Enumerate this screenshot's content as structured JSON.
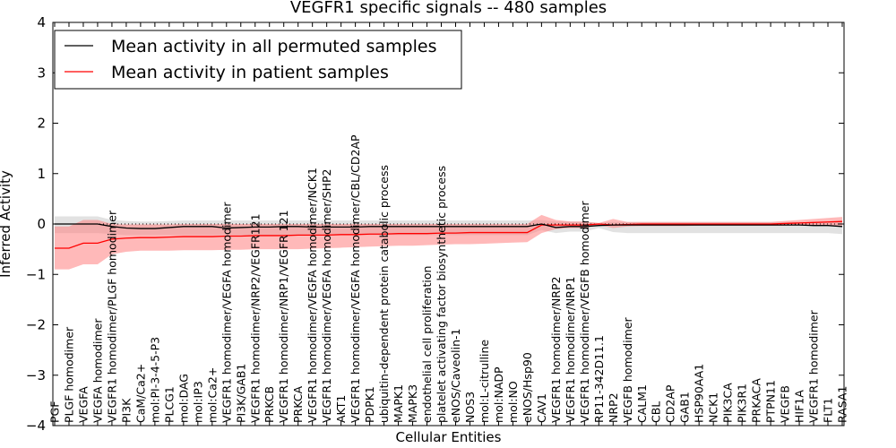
{
  "chart_data": {
    "type": "line",
    "title": "VEGFR1 specific signals -- 480 samples",
    "xlabel": "Cellular Entities",
    "ylabel": "Inferred Activity",
    "ylim": [
      -4,
      4
    ],
    "yticks": [
      -4,
      -3,
      -2,
      -1,
      0,
      1,
      2,
      3,
      4
    ],
    "grid": false,
    "legend_position": "top-left",
    "categories": [
      "PGF",
      "PLGF homodimer",
      "VEGFA",
      "VEGFA homodimer",
      "VEGFR1 homodimer/PLGF homodimer",
      "PI3K",
      "CaM/Ca2+",
      "mol:PI-3-4-5-P3",
      "PLCG1",
      "mol:DAG",
      "mol:IP3",
      "mol:Ca2+",
      "VEGFR1 homodimer/VEGFA homodimer",
      "PI3K/GAB1",
      "VEGFR1 homodimer/NRP2/VEGFR121",
      "PRKCB",
      "VEGFR1 homodimer/NRP1/VEGFR 121",
      "PRKCA",
      "VEGFR1 homodimer/VEGFA homodimer/NCK1",
      "VEGFR1 homodimer/VEGFA homodimer/SHP2",
      "AKT1",
      "VEGFR1 homodimer/VEGFA homodimer/CBL/CD2AP",
      "PDPK1",
      "ubiquitin-dependent protein catabolic process",
      "MAPK1",
      "MAPK3",
      "endothelial cell proliferation",
      "platelet activating factor biosynthetic process",
      "eNOS/Caveolin-1",
      "NOS3",
      "mol:L-citrulline",
      "mol:NADP",
      "mol:NO",
      "eNOS/Hsp90",
      "CAV1",
      "VEGFR1 homodimer/NRP2",
      "VEGFR1 homodimer/NRP1",
      "VEGFR1 homodimer/VEGFB homodimer",
      "RP11-342D11.1",
      "NRP2",
      "VEGFB homodimer",
      "CALM1",
      "CBL",
      "CD2AP",
      "GAB1",
      "HSP90AA1",
      "NCK1",
      "PIK3CA",
      "PIK3R1",
      "PRKACA",
      "PTPN11",
      "VEGFB",
      "HIF1A",
      "VEGFR1 homodimer",
      "FLT1",
      "RASA1"
    ],
    "series": [
      {
        "name": "Mean activity in all permuted samples",
        "color": "#000000",
        "band_color": "#bfbfbf",
        "values": [
          0,
          0,
          0,
          0,
          -0.05,
          -0.08,
          -0.09,
          -0.09,
          -0.07,
          -0.05,
          -0.05,
          -0.05,
          -0.08,
          -0.07,
          -0.06,
          -0.06,
          -0.05,
          -0.05,
          -0.06,
          -0.06,
          -0.06,
          -0.06,
          -0.05,
          -0.05,
          -0.05,
          -0.05,
          -0.05,
          -0.05,
          -0.05,
          -0.05,
          -0.05,
          -0.05,
          -0.05,
          -0.05,
          0,
          -0.07,
          -0.05,
          -0.05,
          -0.03,
          -0.02,
          -0.02,
          -0.02,
          -0.02,
          -0.02,
          -0.02,
          -0.02,
          -0.02,
          -0.02,
          -0.02,
          -0.02,
          -0.02,
          -0.02,
          -0.02,
          -0.03,
          -0.03,
          -0.05
        ],
        "lower": [
          -0.18,
          -0.18,
          -0.18,
          -0.18,
          -0.2,
          -0.22,
          -0.22,
          -0.22,
          -0.22,
          -0.22,
          -0.22,
          -0.22,
          -0.22,
          -0.22,
          -0.22,
          -0.22,
          -0.22,
          -0.22,
          -0.22,
          -0.22,
          -0.22,
          -0.22,
          -0.22,
          -0.22,
          -0.22,
          -0.22,
          -0.22,
          -0.22,
          -0.22,
          -0.22,
          -0.22,
          -0.22,
          -0.22,
          -0.22,
          -0.12,
          -0.18,
          -0.15,
          -0.15,
          -0.08,
          -0.16,
          -0.18,
          -0.18,
          -0.18,
          -0.18,
          -0.18,
          -0.18,
          -0.18,
          -0.18,
          -0.18,
          -0.18,
          -0.18,
          -0.18,
          -0.18,
          -0.18,
          -0.18,
          -0.2
        ],
        "upper": [
          0.15,
          0.15,
          0.15,
          0.15,
          0.08,
          0.06,
          0.05,
          0.05,
          0.06,
          0.07,
          0.07,
          0.07,
          0.07,
          0.07,
          0.07,
          0.07,
          0.07,
          0.07,
          0.07,
          0.07,
          0.07,
          0.07,
          0.07,
          0.07,
          0.07,
          0.07,
          0.07,
          0.07,
          0.07,
          0.07,
          0.07,
          0.07,
          0.07,
          0.07,
          0.08,
          0.05,
          0.05,
          0.05,
          0.02,
          0.04,
          0.04,
          0.04,
          0.04,
          0.04,
          0.04,
          0.04,
          0.04,
          0.04,
          0.04,
          0.04,
          0.04,
          0.04,
          0.04,
          0.04,
          0.04,
          0.05
        ]
      },
      {
        "name": "Mean activity in patient samples",
        "color": "#ff0000",
        "band_color": "#ff8080",
        "values": [
          -0.48,
          -0.48,
          -0.38,
          -0.38,
          -0.3,
          -0.28,
          -0.27,
          -0.27,
          -0.26,
          -0.25,
          -0.25,
          -0.25,
          -0.24,
          -0.24,
          -0.23,
          -0.23,
          -0.23,
          -0.22,
          -0.22,
          -0.22,
          -0.21,
          -0.21,
          -0.2,
          -0.2,
          -0.19,
          -0.19,
          -0.19,
          -0.18,
          -0.18,
          -0.17,
          -0.17,
          -0.17,
          -0.17,
          -0.17,
          -0.02,
          -0.02,
          -0.02,
          -0.02,
          0,
          -0.02,
          -0.01,
          0,
          0,
          0,
          0,
          0,
          0,
          0,
          0,
          0,
          0,
          0.01,
          0.02,
          0.03,
          0.04,
          0.05
        ],
        "lower": [
          -0.9,
          -0.9,
          -0.8,
          -0.8,
          -0.6,
          -0.55,
          -0.53,
          -0.53,
          -0.53,
          -0.52,
          -0.52,
          -0.52,
          -0.51,
          -0.51,
          -0.5,
          -0.5,
          -0.5,
          -0.5,
          -0.49,
          -0.48,
          -0.47,
          -0.46,
          -0.45,
          -0.44,
          -0.43,
          -0.43,
          -0.42,
          -0.41,
          -0.4,
          -0.4,
          -0.39,
          -0.38,
          -0.37,
          -0.36,
          -0.18,
          -0.1,
          -0.08,
          -0.08,
          -0.02,
          -0.08,
          -0.05,
          -0.04,
          -0.04,
          -0.04,
          -0.04,
          -0.03,
          -0.03,
          -0.03,
          -0.03,
          -0.03,
          -0.03,
          -0.03,
          -0.03,
          -0.03,
          -0.03,
          -0.03
        ],
        "upper": [
          -0.05,
          -0.05,
          0.08,
          0.08,
          0,
          -0.01,
          -0.01,
          -0.01,
          -0.01,
          0,
          0,
          0,
          0,
          0,
          0,
          0,
          0,
          0,
          0,
          0,
          0,
          0,
          0,
          0,
          0,
          0,
          0,
          0,
          0,
          0,
          0,
          0,
          0,
          0,
          0.18,
          0.08,
          0.05,
          0.05,
          0.02,
          0.1,
          0.04,
          0.04,
          0.04,
          0.04,
          0.04,
          0.04,
          0.04,
          0.04,
          0.04,
          0.04,
          0.04,
          0.06,
          0.08,
          0.1,
          0.12,
          0.14
        ]
      }
    ]
  }
}
